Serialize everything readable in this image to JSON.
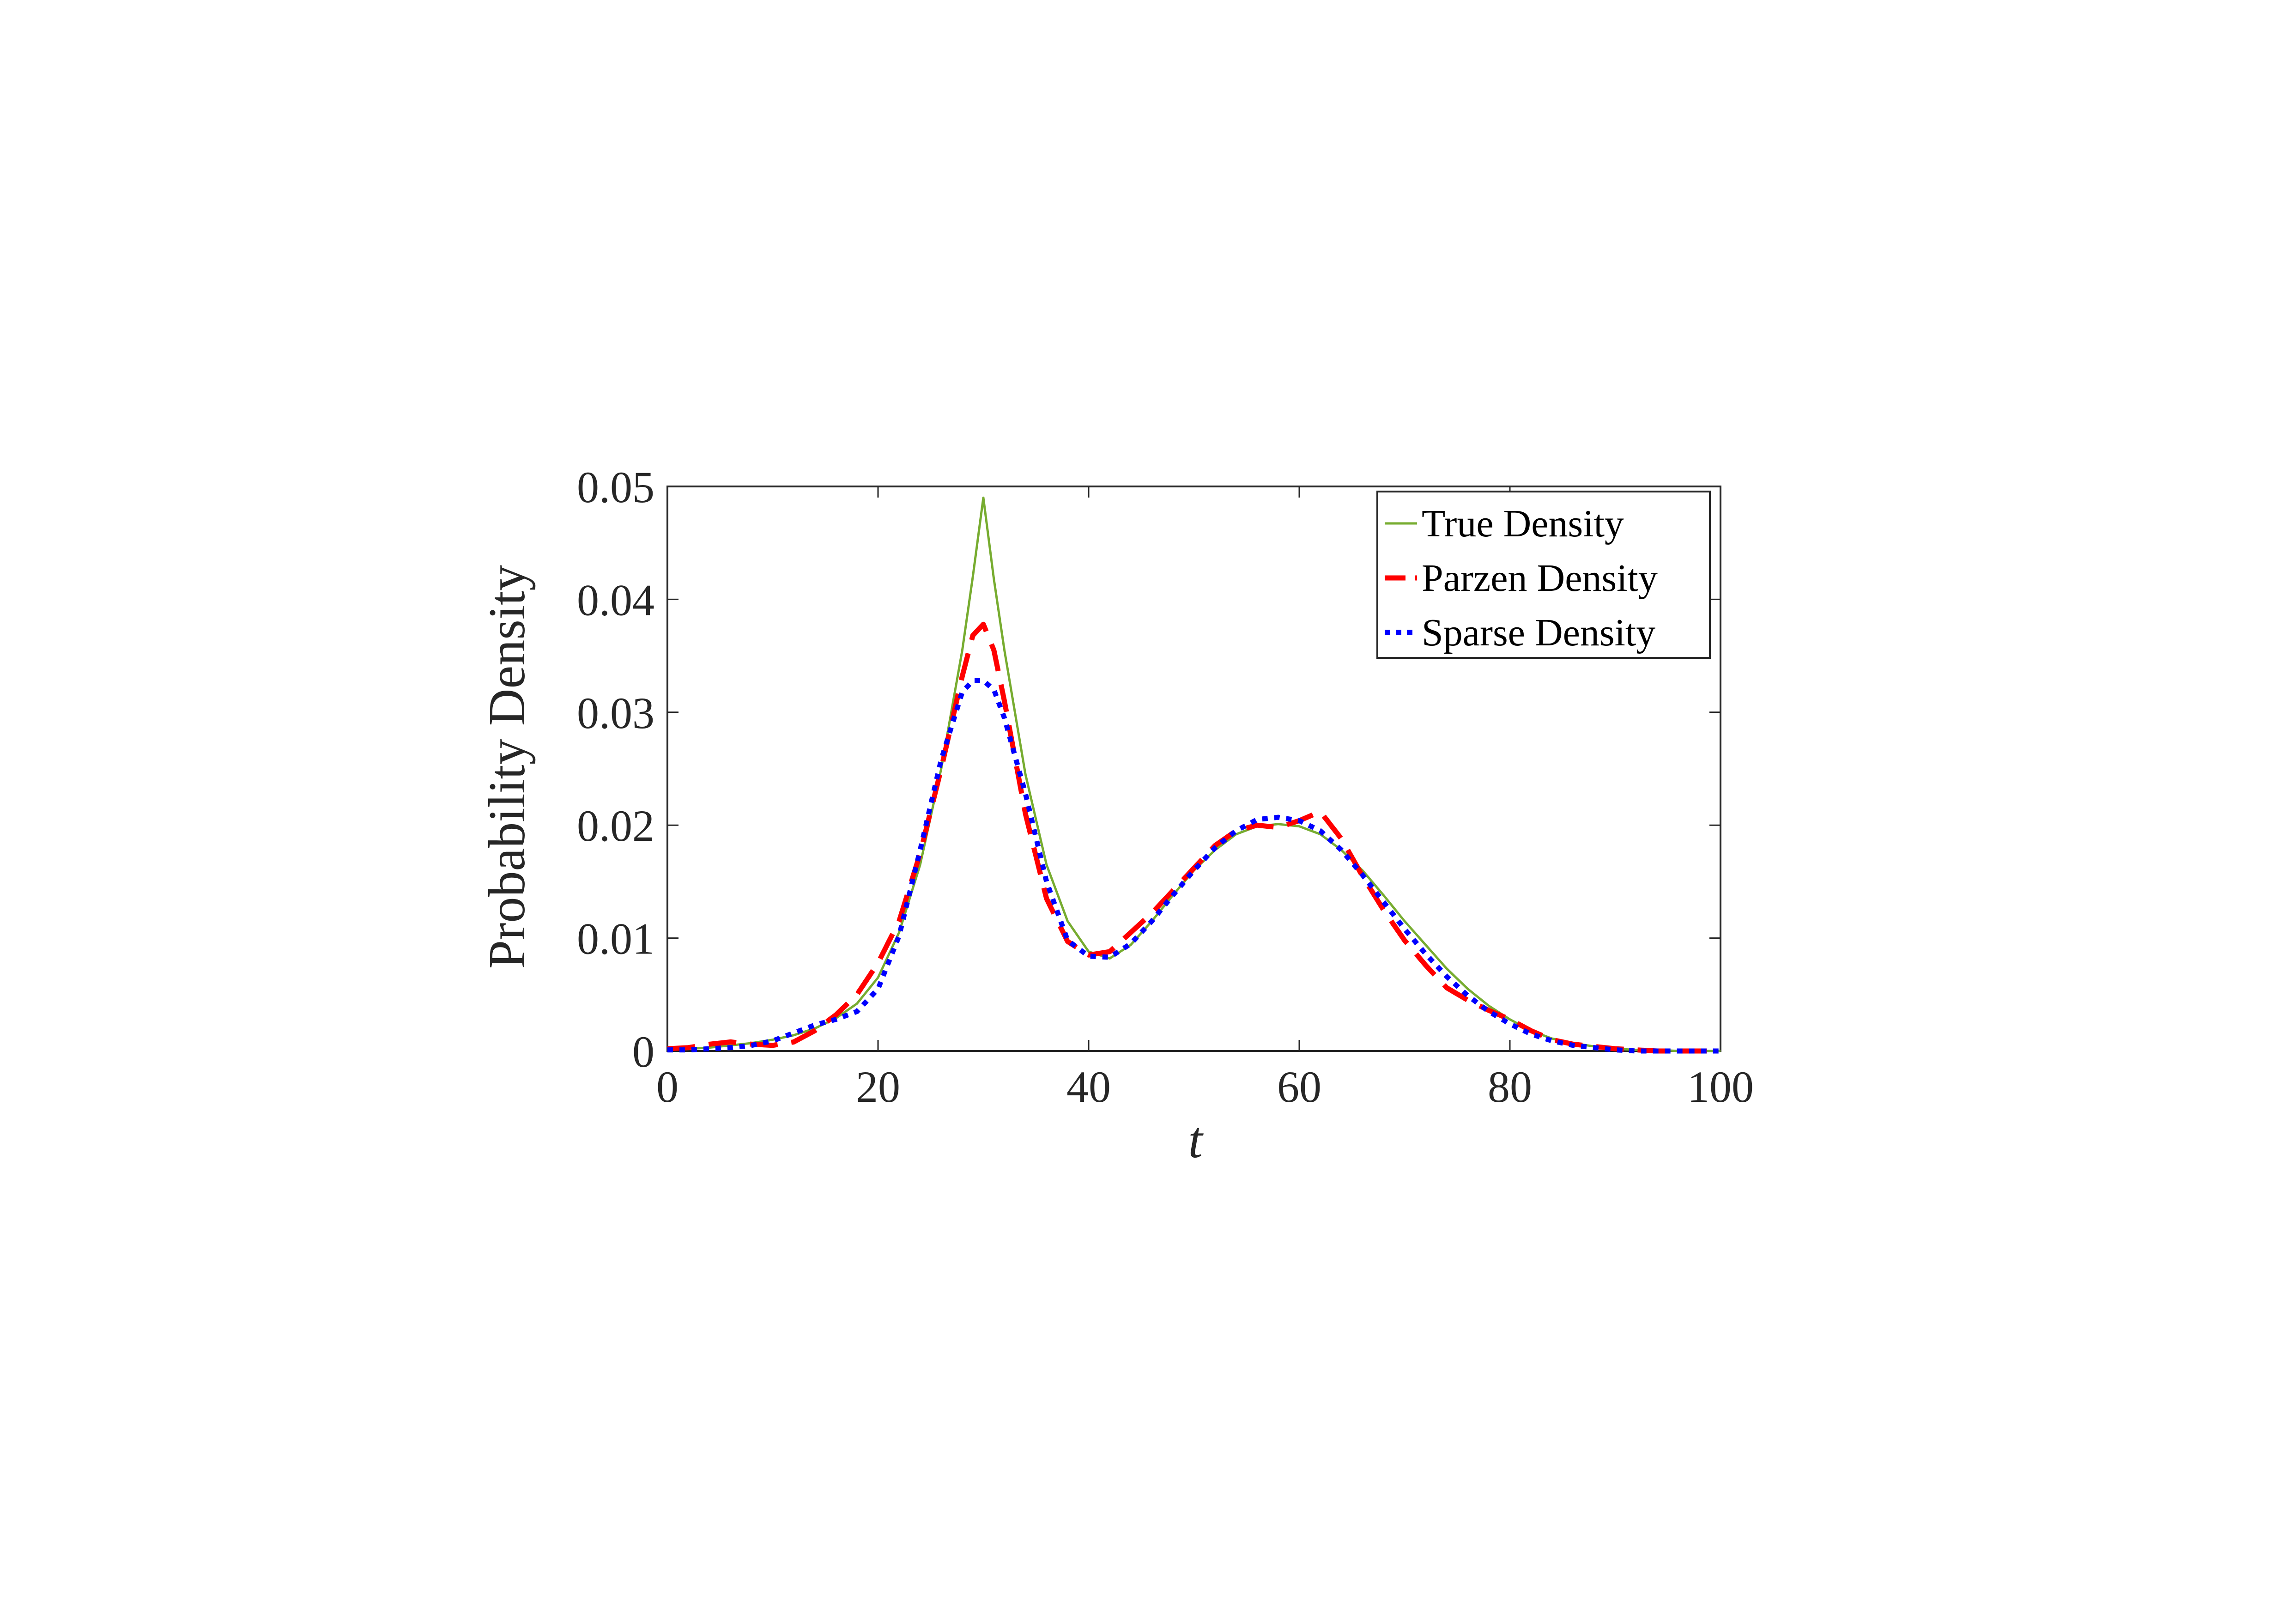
{
  "chart_data": {
    "type": "line",
    "xlabel": "t",
    "ylabel": "Probability Density",
    "xlim": [
      0,
      100
    ],
    "ylim": [
      0,
      0.05
    ],
    "xticks": [
      0,
      20,
      40,
      60,
      80,
      100
    ],
    "xtick_labels": [
      "0",
      "20",
      "40",
      "60",
      "80",
      "100"
    ],
    "yticks": [
      0,
      0.01,
      0.02,
      0.03,
      0.04,
      0.05
    ],
    "ytick_labels": [
      "0",
      "0.01",
      "0.02",
      "0.03",
      "0.04",
      "0.05"
    ],
    "grid": false,
    "legend_position": "top-right",
    "x": [
      0,
      2,
      4,
      6,
      8,
      10,
      12,
      14,
      16,
      18,
      20,
      22,
      24,
      26,
      28,
      29,
      30,
      31,
      32,
      34,
      36,
      38,
      40,
      42,
      44,
      46,
      48,
      50,
      52,
      54,
      56,
      58,
      60,
      62,
      64,
      66,
      68,
      70,
      72,
      74,
      76,
      78,
      80,
      82,
      84,
      86,
      88,
      90,
      92,
      94,
      96,
      98,
      100
    ],
    "series": [
      {
        "name": "True Density",
        "color": "#77AC30",
        "style": "solid",
        "values": [
          0.0001,
          0.0002,
          0.0003,
          0.0005,
          0.0007,
          0.001,
          0.0014,
          0.002,
          0.0029,
          0.0042,
          0.0065,
          0.0105,
          0.0165,
          0.025,
          0.0355,
          0.042,
          0.049,
          0.0418,
          0.0355,
          0.0245,
          0.0165,
          0.0115,
          0.0088,
          0.0082,
          0.0094,
          0.0115,
          0.0138,
          0.016,
          0.0178,
          0.0192,
          0.0199,
          0.0201,
          0.0199,
          0.0192,
          0.0178,
          0.016,
          0.0138,
          0.0115,
          0.0094,
          0.0073,
          0.0055,
          0.004,
          0.0028,
          0.0018,
          0.0011,
          0.0007,
          0.0004,
          0.0002,
          0.0001,
          0.0001,
          0.0,
          0.0,
          0.0
        ]
      },
      {
        "name": "Parzen Density",
        "color": "#FF0000",
        "style": "dashed",
        "values": [
          0.0002,
          0.0003,
          0.0006,
          0.0008,
          0.0006,
          0.0005,
          0.0008,
          0.0018,
          0.0032,
          0.005,
          0.0078,
          0.0115,
          0.0175,
          0.025,
          0.0332,
          0.0368,
          0.0378,
          0.0355,
          0.031,
          0.021,
          0.0135,
          0.0097,
          0.0085,
          0.0088,
          0.0105,
          0.0122,
          0.0142,
          0.0162,
          0.0182,
          0.0195,
          0.02,
          0.0198,
          0.0204,
          0.0212,
          0.0188,
          0.0155,
          0.0125,
          0.0098,
          0.0076,
          0.0056,
          0.0045,
          0.0036,
          0.0028,
          0.0018,
          0.001,
          0.0006,
          0.0004,
          0.0002,
          0.0001,
          0.0,
          0.0,
          0.0,
          0.0
        ]
      },
      {
        "name": "Sparse Density",
        "color": "#0000FF",
        "style": "dotted",
        "values": [
          0.0001,
          0.0001,
          0.0002,
          0.0003,
          0.0005,
          0.0009,
          0.0016,
          0.0023,
          0.0028,
          0.0035,
          0.0055,
          0.0102,
          0.0178,
          0.0258,
          0.0318,
          0.0328,
          0.0328,
          0.032,
          0.0295,
          0.0228,
          0.015,
          0.0098,
          0.0084,
          0.0083,
          0.0095,
          0.0115,
          0.0138,
          0.016,
          0.018,
          0.0195,
          0.0205,
          0.0207,
          0.0204,
          0.0195,
          0.0178,
          0.0156,
          0.0132,
          0.0108,
          0.0086,
          0.0066,
          0.0049,
          0.0035,
          0.0024,
          0.0015,
          0.0009,
          0.0005,
          0.0003,
          0.0001,
          0.0,
          0.0,
          0.0,
          0.0,
          0.0
        ]
      }
    ]
  }
}
